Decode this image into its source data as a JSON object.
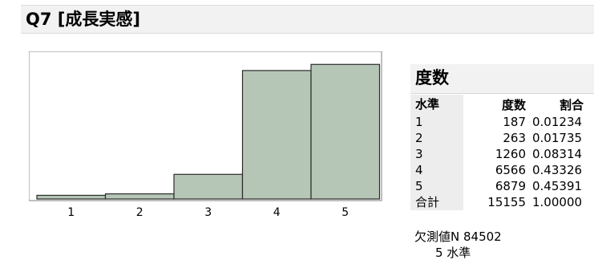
{
  "report": {
    "title": "Q7 [成長実感]"
  },
  "chart_data": {
    "type": "bar",
    "categories": [
      "1",
      "2",
      "3",
      "4",
      "5"
    ],
    "values": [
      187,
      263,
      1260,
      6566,
      6879
    ],
    "ylim": [
      0,
      7300
    ],
    "bar_color": "#b5c6b6",
    "bar_border": "#2b2b2b"
  },
  "freq": {
    "title": "度数",
    "headers": {
      "level": "水準",
      "count": "度数",
      "ratio": "割合"
    },
    "rows": [
      {
        "level": "1",
        "count": "187",
        "ratio": "0.01234"
      },
      {
        "level": "2",
        "count": "263",
        "ratio": "0.01735"
      },
      {
        "level": "3",
        "count": "1260",
        "ratio": "0.08314"
      },
      {
        "level": "4",
        "count": "6566",
        "ratio": "0.43326"
      },
      {
        "level": "5",
        "count": "6879",
        "ratio": "0.45391"
      },
      {
        "level": "合計",
        "count": "15155",
        "ratio": "1.00000"
      }
    ],
    "missing": "欠測値N  84502",
    "levels": "5 水準"
  }
}
